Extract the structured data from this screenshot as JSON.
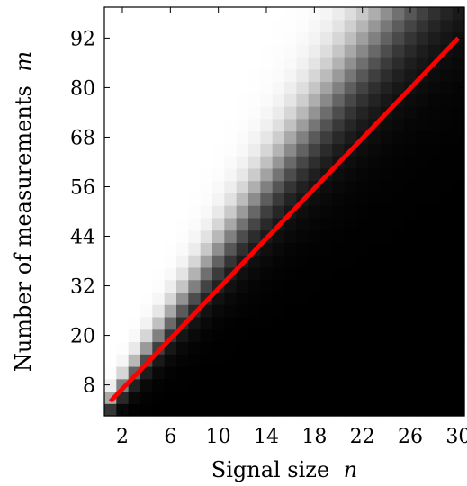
{
  "chart_data": {
    "type": "heatmap",
    "title": "",
    "xlabel_text": "Signal size",
    "xlabel_var": "n",
    "ylabel_text": "Number of measurements",
    "ylabel_var": "m",
    "x_ticks": [
      2,
      6,
      10,
      14,
      18,
      22,
      26,
      30
    ],
    "y_ticks": [
      8,
      20,
      32,
      44,
      56,
      68,
      80,
      92
    ],
    "x_values": [
      1,
      2,
      3,
      4,
      5,
      6,
      7,
      8,
      9,
      10,
      11,
      12,
      13,
      14,
      15,
      16,
      17,
      18,
      19,
      20,
      21,
      22,
      23,
      24,
      25,
      26,
      27,
      28,
      29,
      30
    ],
    "y_values": [
      2,
      5,
      8,
      11,
      14,
      17,
      20,
      23,
      26,
      29,
      32,
      35,
      38,
      41,
      44,
      47,
      50,
      53,
      56,
      59,
      62,
      65,
      68,
      71,
      74,
      77,
      80,
      83,
      86,
      89,
      92,
      95,
      98
    ],
    "xlim": [
      0.5,
      30.5
    ],
    "ylim": [
      0.5,
      99.5
    ],
    "colormap": "black (0) to white (1)",
    "cell_value_model": "1 / (1 + exp((4n - m) / (1.2 + 0.3n)))",
    "trend_line": {
      "color": "#ff0000",
      "x": [
        1,
        30
      ],
      "y": [
        4,
        92
      ]
    }
  }
}
